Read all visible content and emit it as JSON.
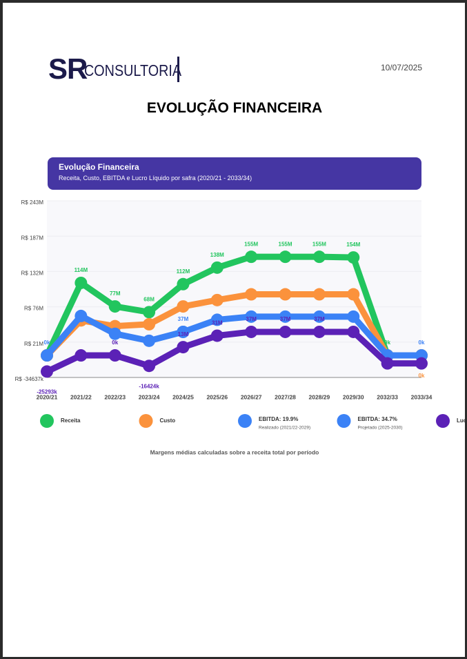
{
  "header": {
    "logo_mark": "SR",
    "logo_text": "CONSULTORIA",
    "date": "10/07/2025"
  },
  "title": "EVOLUÇÃO FINANCEIRA",
  "chart_data": {
    "type": "line",
    "title": "Evolução Financeira",
    "subtitle": "Receita, Custo, EBITDA e Lucro Líquido por safra (2020/21 - 2033/34)",
    "categories": [
      "2020/21",
      "2021/22",
      "2022/23",
      "2023/24",
      "2024/25",
      "2025/26",
      "2026/27",
      "2027/28",
      "2028/29",
      "2029/30",
      "2032/33",
      "2033/34"
    ],
    "series": [
      {
        "name": "Receita",
        "color": "#22c55e",
        "values": [
          0,
          114,
          77,
          68,
          112,
          138,
          155,
          155,
          155,
          154,
          0,
          0
        ],
        "value_labels": [
          null,
          "114M",
          "77M",
          "68M",
          "112M",
          "138M",
          "155M",
          "155M",
          "155M",
          "154M",
          "0k",
          null
        ]
      },
      {
        "name": "Custo",
        "color": "#fb923c",
        "values": [
          0,
          55,
          46,
          49,
          77,
          87,
          96,
          96,
          96,
          96,
          0,
          0
        ],
        "value_labels": [
          null,
          null,
          null,
          null,
          null,
          null,
          null,
          null,
          null,
          null,
          null,
          "0k"
        ]
      },
      {
        "name": "EBITDA: 19.9%",
        "note": "Realizado (2021/22-2029)",
        "color": "#3b82f6",
        "values": [
          0,
          62,
          34,
          23,
          37,
          null,
          null,
          null,
          null,
          null,
          null,
          null
        ],
        "value_labels": [
          "0k",
          null,
          null,
          null,
          "37M",
          null,
          null,
          null,
          null,
          null,
          null,
          null
        ]
      },
      {
        "name": "EBITDA: 34.7%",
        "note": "Projetado (2025-2030)",
        "color": "#3b82f6",
        "values": [
          null,
          null,
          null,
          null,
          37,
          56,
          61,
          61,
          61,
          61,
          0,
          0
        ],
        "value_labels": [
          null,
          null,
          null,
          null,
          null,
          null,
          null,
          null,
          null,
          null,
          null,
          "0k"
        ]
      },
      {
        "name": "Lucro",
        "color": "#5b21b6",
        "values": [
          -25.293,
          0,
          0,
          -16.424,
          13,
          31,
          37,
          37,
          37,
          37,
          -12.6,
          -12.6
        ],
        "value_labels": [
          "-25293k",
          null,
          "0k",
          "-16424k",
          "13M",
          "31M",
          "37M",
          "37M",
          "37M",
          null,
          null,
          null
        ]
      }
    ],
    "ylim": [
      -34.637,
      243
    ],
    "yticks": [
      {
        "value": -34.637,
        "label": "R$ -34637k"
      },
      {
        "value": 20.9,
        "label": "R$ 21M"
      },
      {
        "value": 76.4,
        "label": "R$ 76M"
      },
      {
        "value": 132,
        "label": "R$ 132M"
      },
      {
        "value": 187.4,
        "label": "R$ 187M"
      },
      {
        "value": 243,
        "label": "R$ 243M"
      }
    ],
    "grid": true,
    "legend": "bottom",
    "note": "Margens médias calculadas sobre a receita total por período"
  }
}
